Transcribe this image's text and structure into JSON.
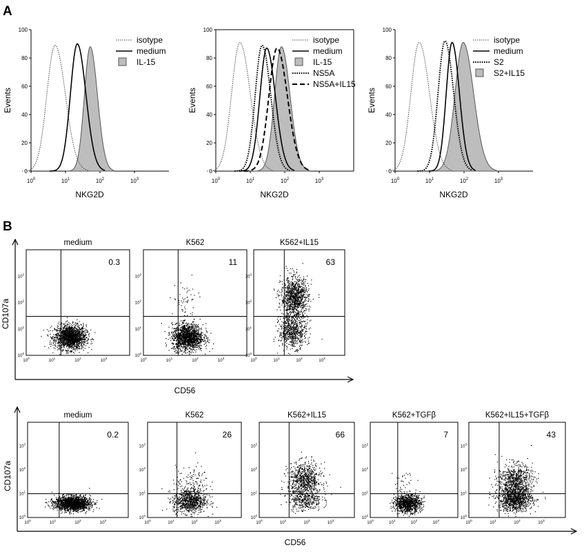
{
  "panel_labels": [
    "A",
    "B"
  ],
  "histograms": [
    {
      "y_label": "Events",
      "x_label": "NKG2D",
      "y_ticks": [
        "0",
        "20",
        "40",
        "60",
        "80",
        "100"
      ],
      "x_ticks": [
        {
          "b": "10",
          "e": "0"
        },
        {
          "b": "10",
          "e": "1"
        },
        {
          "b": "10",
          "e": "2"
        },
        {
          "b": "10",
          "e": "3"
        }
      ],
      "legend": [
        {
          "label": "isotype",
          "style": "dotted"
        },
        {
          "label": "medium",
          "style": "solid"
        },
        {
          "label": "IL-15",
          "style": "filled"
        }
      ]
    },
    {
      "y_label": "Events",
      "x_label": "NKG2D",
      "y_ticks": [
        "0",
        "20",
        "40",
        "60",
        "80",
        "100"
      ],
      "x_ticks": [
        {
          "b": "10",
          "e": "0"
        },
        {
          "b": "10",
          "e": "1"
        },
        {
          "b": "10",
          "e": "2"
        },
        {
          "b": "10",
          "e": "3"
        }
      ],
      "legend": [
        {
          "label": "isotype",
          "style": "dotted"
        },
        {
          "label": "medium",
          "style": "solid"
        },
        {
          "label": "IL-15",
          "style": "filled"
        },
        {
          "label": "NS5A",
          "style": "dotted-bold"
        },
        {
          "label": "NS5A+IL15",
          "style": "dashed"
        }
      ]
    },
    {
      "y_label": "Events",
      "x_label": "NKG2D",
      "y_ticks": [
        "0",
        "20",
        "40",
        "60",
        "80",
        "100"
      ],
      "x_ticks": [
        {
          "b": "10",
          "e": "0"
        },
        {
          "b": "10",
          "e": "1"
        },
        {
          "b": "10",
          "e": "2"
        },
        {
          "b": "10",
          "e": "3"
        }
      ],
      "legend": [
        {
          "label": "isotype",
          "style": "dotted"
        },
        {
          "label": "medium",
          "style": "solid"
        },
        {
          "label": "S2",
          "style": "dotted-bold"
        },
        {
          "label": "S2+IL15",
          "style": "filled"
        }
      ]
    }
  ],
  "dot_rows": [
    {
      "x_label": "CD56",
      "y_label": "CD107a",
      "ticks": [
        "10",
        "0",
        "1",
        "2",
        "3"
      ],
      "plots": [
        {
          "title": "medium",
          "percent": "0.3"
        },
        {
          "title": "K562",
          "percent": "11"
        },
        {
          "title": "K562+IL15",
          "percent": "63"
        }
      ]
    },
    {
      "x_label": "CD56",
      "y_label": "CD107a",
      "ticks": [
        "10",
        "0",
        "1",
        "2",
        "3"
      ],
      "plots": [
        {
          "title": "medium",
          "percent": "0.2"
        },
        {
          "title": "K562",
          "percent": "26"
        },
        {
          "title": "K562+IL15",
          "percent": "66"
        },
        {
          "title": "K562+TGFβ",
          "percent": "7"
        },
        {
          "title": "K562+IL15+TGFβ",
          "percent": "43"
        }
      ]
    }
  ],
  "chart_data": [
    {
      "type": "area",
      "title": "",
      "xlabel": "NKG2D",
      "ylabel": "Events",
      "x_scale": "log10",
      "xlim": [
        1,
        10000
      ],
      "ylim": [
        0,
        100
      ],
      "series": [
        {
          "name": "isotype",
          "style": "dotted",
          "mode": 5,
          "peak": 89,
          "width": 0.24
        },
        {
          "name": "medium",
          "style": "solid",
          "mode": 22,
          "peak": 90,
          "width": 0.2
        },
        {
          "name": "IL-15",
          "style": "filled",
          "mode": 52,
          "peak": 88,
          "width": 0.17
        }
      ]
    },
    {
      "type": "area",
      "title": "",
      "xlabel": "NKG2D",
      "ylabel": "Events",
      "x_scale": "log10",
      "xlim": [
        1,
        10000
      ],
      "ylim": [
        0,
        100
      ],
      "series": [
        {
          "name": "isotype",
          "style": "dotted",
          "mode": 5,
          "peak": 91,
          "width": 0.24
        },
        {
          "name": "medium",
          "style": "solid",
          "mode": 30,
          "peak": 87,
          "width": 0.2
        },
        {
          "name": "IL-15",
          "style": "filled",
          "mode": 80,
          "peak": 88,
          "width": 0.2
        },
        {
          "name": "NS5A",
          "style": "dotted-bold",
          "mode": 22,
          "peak": 89,
          "width": 0.2
        },
        {
          "name": "NS5A+IL15",
          "style": "dashed",
          "mode": 60,
          "peak": 87,
          "width": 0.24
        }
      ]
    },
    {
      "type": "area",
      "title": "",
      "xlabel": "NKG2D",
      "ylabel": "Events",
      "x_scale": "log10",
      "xlim": [
        1,
        10000
      ],
      "ylim": [
        0,
        100
      ],
      "series": [
        {
          "name": "isotype",
          "style": "dotted",
          "mode": 5,
          "peak": 91,
          "width": 0.24
        },
        {
          "name": "medium",
          "style": "solid",
          "mode": 45,
          "peak": 91,
          "width": 0.17
        },
        {
          "name": "S2",
          "style": "dotted-bold",
          "mode": 28,
          "peak": 92,
          "width": 0.2
        },
        {
          "name": "S2+IL15",
          "style": "filled",
          "mode": 95,
          "peak": 91,
          "width": 0.24
        }
      ]
    },
    {
      "type": "scatter",
      "title": "",
      "xlabel": "CD56",
      "ylabel": "CD107a",
      "x_scale": "log10",
      "y_scale": "log10",
      "xlim": [
        1,
        10000
      ],
      "ylim": [
        1,
        10000
      ],
      "panels": [
        {
          "title": "medium",
          "percent_positive": 0.3,
          "clusters": [
            {
              "x": 50,
              "y": 5,
              "sx": 0.3,
              "sy": 0.23,
              "weight": 1.0,
              "density": "dense"
            }
          ]
        },
        {
          "title": "K562",
          "percent_positive": 11,
          "clusters": [
            {
              "x": 50,
              "y": 5,
              "sx": 0.3,
              "sy": 0.25,
              "weight": 0.89,
              "density": "dense"
            },
            {
              "x": 40,
              "y": 100,
              "sx": 0.25,
              "sy": 0.45,
              "weight": 0.11,
              "density": "sparse"
            }
          ]
        },
        {
          "title": "K562+IL15",
          "percent_positive": 63,
          "clusters": [
            {
              "x": 50,
              "y": 8,
              "sx": 0.3,
              "sy": 0.3,
              "weight": 0.37,
              "density": "dense"
            },
            {
              "x": 60,
              "y": 150,
              "sx": 0.3,
              "sy": 0.4,
              "weight": 0.63,
              "density": "dense"
            }
          ]
        }
      ]
    },
    {
      "type": "scatter",
      "title": "",
      "xlabel": "CD56",
      "ylabel": "CD107a",
      "x_scale": "log10",
      "y_scale": "log10",
      "xlim": [
        1,
        10000
      ],
      "ylim": [
        1,
        10000
      ],
      "panels": [
        {
          "title": "medium",
          "percent_positive": 0.2,
          "clusters": [
            {
              "x": 60,
              "y": 4,
              "sx": 0.35,
              "sy": 0.15,
              "weight": 1.0,
              "density": "dense"
            }
          ]
        },
        {
          "title": "K562",
          "percent_positive": 26,
          "clusters": [
            {
              "x": 60,
              "y": 5,
              "sx": 0.35,
              "sy": 0.25,
              "weight": 0.74,
              "density": "medium"
            },
            {
              "x": 80,
              "y": 30,
              "sx": 0.35,
              "sy": 0.35,
              "weight": 0.26,
              "density": "sparse"
            }
          ]
        },
        {
          "title": "K562+IL15",
          "percent_positive": 66,
          "clusters": [
            {
              "x": 80,
              "y": 6,
              "sx": 0.35,
              "sy": 0.25,
              "weight": 0.34,
              "density": "medium"
            },
            {
              "x": 80,
              "y": 40,
              "sx": 0.35,
              "sy": 0.35,
              "weight": 0.66,
              "density": "medium"
            }
          ]
        },
        {
          "title": "K562+TGFβ",
          "percent_positive": 7,
          "clusters": [
            {
              "x": 50,
              "y": 4,
              "sx": 0.3,
              "sy": 0.18,
              "weight": 0.93,
              "density": "medium"
            },
            {
              "x": 40,
              "y": 25,
              "sx": 0.3,
              "sy": 0.3,
              "weight": 0.07,
              "density": "sparse"
            }
          ]
        },
        {
          "title": "K562+IL15+TGFβ",
          "percent_positive": 43,
          "clusters": [
            {
              "x": 80,
              "y": 6,
              "sx": 0.35,
              "sy": 0.25,
              "weight": 0.57,
              "density": "dense"
            },
            {
              "x": 80,
              "y": 35,
              "sx": 0.35,
              "sy": 0.35,
              "weight": 0.43,
              "density": "dense"
            }
          ]
        }
      ]
    }
  ]
}
